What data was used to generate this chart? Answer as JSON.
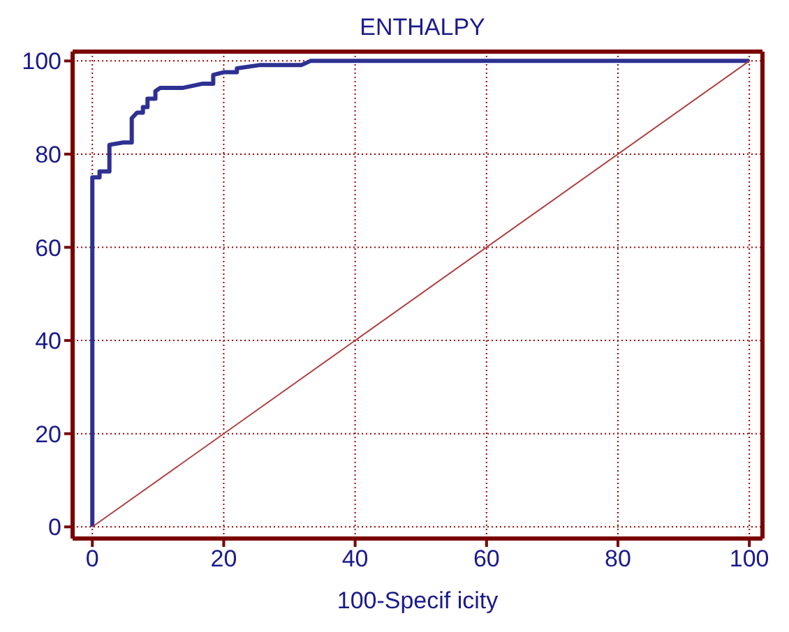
{
  "chart_data": {
    "type": "line",
    "title": "ENTHALPY",
    "xlabel": "100-Specif icity",
    "xlim": [
      -3,
      102
    ],
    "ylim": [
      -2.5,
      102
    ],
    "xticks": [
      0,
      20,
      40,
      60,
      80,
      100
    ],
    "yticks": [
      0,
      20,
      40,
      60,
      80,
      100
    ],
    "grid": true,
    "marker": "none",
    "series": [
      {
        "color": "#2e3192",
        "x": [
          0,
          0,
          1.1,
          1.1,
          2.6,
          2.6,
          4.7,
          6.0,
          6.0,
          6.8,
          7.7,
          7.7,
          8.4,
          8.4,
          9.6,
          9.6,
          10.3,
          13.7,
          16.7,
          18.4,
          18.4,
          20.1,
          22,
          22,
          25.4,
          31.8,
          33.2,
          100
        ],
        "values": [
          0,
          75,
          75,
          76.3,
          76.3,
          82,
          82.5,
          82.5,
          87.7,
          88.9,
          88.9,
          90.1,
          90.1,
          91.9,
          91.9,
          93.5,
          94.2,
          94.2,
          95.1,
          95.1,
          97,
          97.6,
          97.6,
          98.4,
          99.1,
          99.1,
          100,
          100
        ]
      },
      {
        "color": "#b04040",
        "x": [
          0,
          100
        ],
        "values": [
          0,
          100
        ]
      }
    ]
  }
}
